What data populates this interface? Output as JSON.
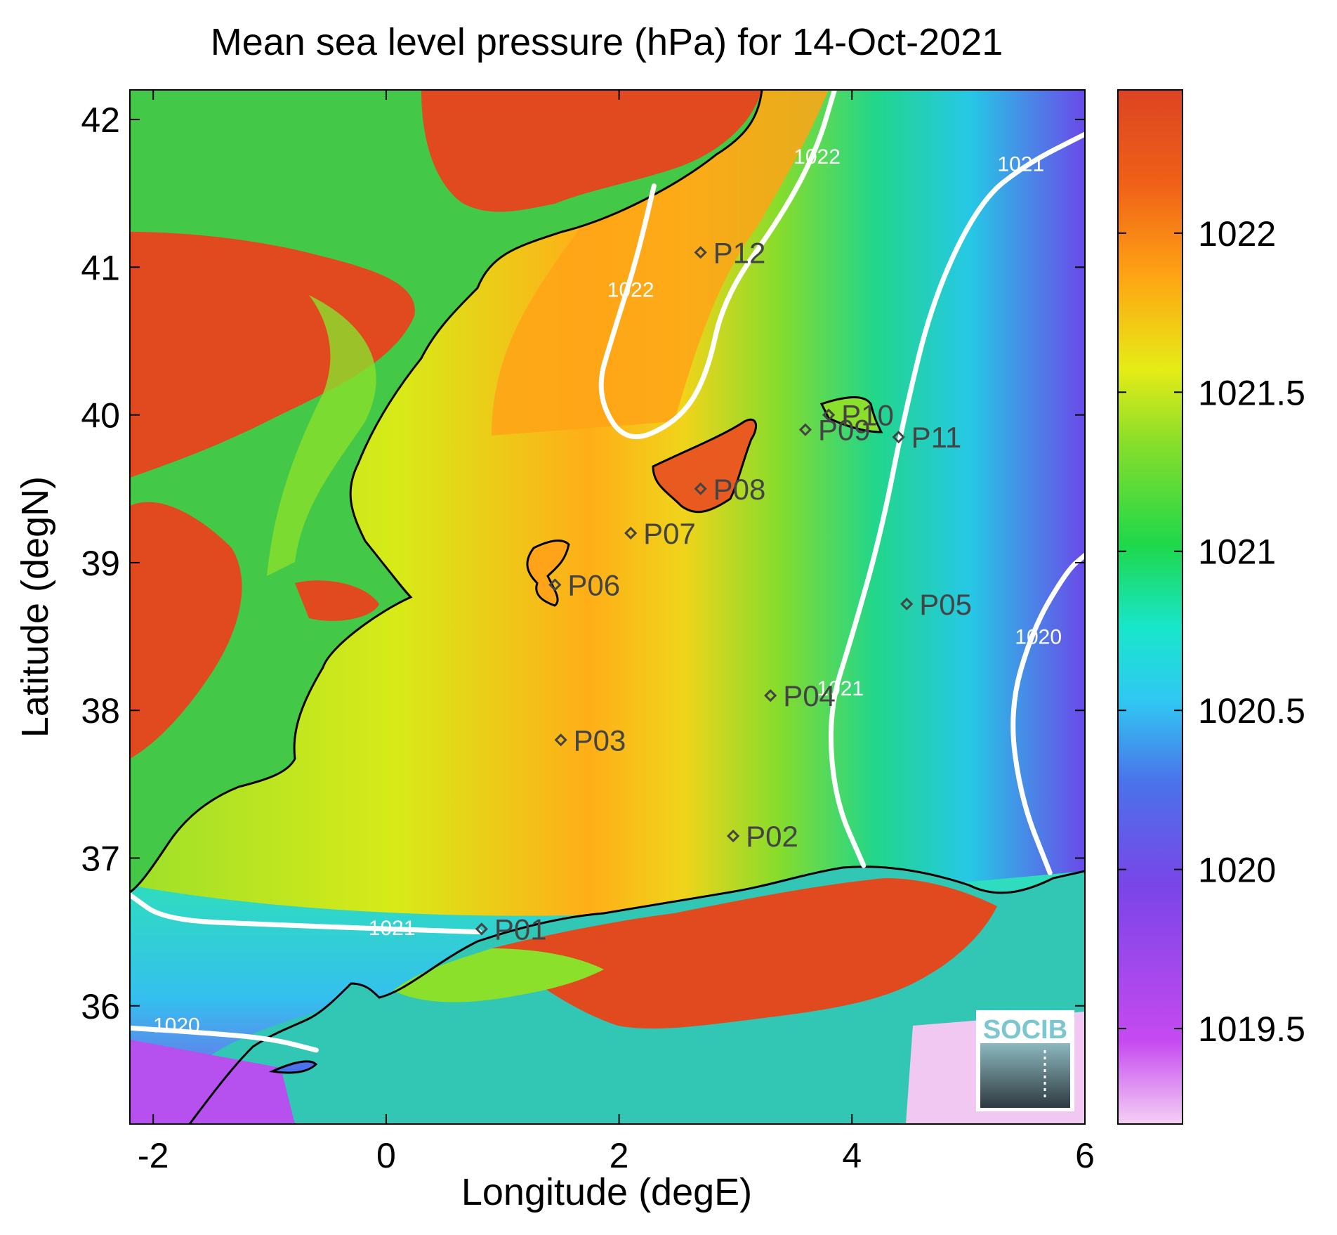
{
  "title": "Mean sea level pressure (hPa) for 14-Oct-2021",
  "chart_data": {
    "type": "heatmap",
    "title": "Mean sea level pressure (hPa) for 14-Oct-2021",
    "xlabel": "Longitude (degE)",
    "ylabel": "Latitude (degN)",
    "xlim": [
      -2.2,
      6.0
    ],
    "ylim": [
      35.2,
      42.2
    ],
    "x_ticks": [
      {
        "value": -2,
        "label": "-2"
      },
      {
        "value": 0,
        "label": "0"
      },
      {
        "value": 2,
        "label": "2"
      },
      {
        "value": 4,
        "label": "4"
      },
      {
        "value": 6,
        "label": "6"
      }
    ],
    "y_ticks": [
      {
        "value": 36,
        "label": "36"
      },
      {
        "value": 37,
        "label": "37"
      },
      {
        "value": 38,
        "label": "38"
      },
      {
        "value": 39,
        "label": "39"
      },
      {
        "value": 40,
        "label": "40"
      },
      {
        "value": 41,
        "label": "41"
      },
      {
        "value": 42,
        "label": "42"
      }
    ],
    "colorbar": {
      "range": [
        1019.2,
        1022.45
      ],
      "ticks": [
        {
          "value": 1019.5,
          "label": "1019.5"
        },
        {
          "value": 1020,
          "label": "1020"
        },
        {
          "value": 1020.5,
          "label": "1020.5"
        },
        {
          "value": 1021,
          "label": "1021"
        },
        {
          "value": 1021.5,
          "label": "1021.5"
        },
        {
          "value": 1022,
          "label": "1022"
        }
      ],
      "colors": [
        "#f3c9f3",
        "#c64af0",
        "#7a45e8",
        "#4a70e8",
        "#33c8f0",
        "#18e8c8",
        "#22d848",
        "#8ade2a",
        "#e6ec16",
        "#ffa414",
        "#f06018",
        "#dc4422"
      ]
    },
    "contours": [
      {
        "label": "1022",
        "points": [
          [
            2.3,
            41.55
          ],
          [
            2.15,
            41.05
          ],
          [
            1.95,
            40.55
          ],
          [
            1.8,
            40.15
          ],
          [
            2.05,
            39.8
          ],
          [
            2.5,
            39.95
          ],
          [
            2.75,
            40.25
          ],
          [
            2.9,
            40.8
          ],
          [
            3.4,
            41.35
          ],
          [
            3.7,
            41.8
          ],
          [
            3.85,
            42.2
          ]
        ],
        "label_positions": [
          [
            3.7,
            41.7
          ],
          [
            2.1,
            40.8
          ]
        ]
      },
      {
        "label": "1021",
        "points": [
          [
            4.1,
            36.95
          ],
          [
            3.85,
            37.4
          ],
          [
            3.8,
            38.0
          ],
          [
            4.0,
            38.5
          ],
          [
            4.25,
            39.2
          ],
          [
            4.45,
            40.0
          ],
          [
            4.7,
            40.8
          ],
          [
            5.1,
            41.45
          ],
          [
            5.5,
            41.7
          ],
          [
            6.0,
            41.9
          ]
        ],
        "label_positions": [
          [
            5.45,
            41.65
          ],
          [
            3.9,
            38.1
          ]
        ]
      },
      {
        "label": "1021",
        "points": [
          [
            -2.2,
            36.75
          ],
          [
            -1.9,
            36.58
          ],
          [
            -1.0,
            36.55
          ],
          [
            0.0,
            36.52
          ],
          [
            0.8,
            36.5
          ]
        ],
        "label_positions": [
          [
            0.05,
            36.48
          ]
        ]
      },
      {
        "label": "1020",
        "points": [
          [
            5.7,
            36.9
          ],
          [
            5.45,
            37.4
          ],
          [
            5.35,
            38.0
          ],
          [
            5.55,
            38.55
          ],
          [
            5.85,
            38.95
          ],
          [
            6.0,
            39.05
          ]
        ],
        "label_positions": [
          [
            5.6,
            38.45
          ]
        ]
      },
      {
        "label": "1020",
        "points": [
          [
            -2.2,
            35.85
          ],
          [
            -1.6,
            35.82
          ],
          [
            -1.0,
            35.78
          ],
          [
            -0.6,
            35.7
          ]
        ],
        "label_positions": [
          [
            -1.8,
            35.82
          ]
        ]
      }
    ],
    "stations": [
      {
        "name": "P01",
        "lon": 0.82,
        "lat": 36.52
      },
      {
        "name": "P02",
        "lon": 2.98,
        "lat": 37.15
      },
      {
        "name": "P03",
        "lon": 1.5,
        "lat": 37.8
      },
      {
        "name": "P04",
        "lon": 3.3,
        "lat": 38.1
      },
      {
        "name": "P05",
        "lon": 4.47,
        "lat": 38.72
      },
      {
        "name": "P06",
        "lon": 1.45,
        "lat": 38.85
      },
      {
        "name": "P07",
        "lon": 2.1,
        "lat": 39.2
      },
      {
        "name": "P08",
        "lon": 2.7,
        "lat": 39.5
      },
      {
        "name": "P09",
        "lon": 3.6,
        "lat": 39.9
      },
      {
        "name": "P10",
        "lon": 3.8,
        "lat": 40.0
      },
      {
        "name": "P11",
        "lon": 4.4,
        "lat": 39.85
      },
      {
        "name": "P12",
        "lon": 2.7,
        "lat": 41.1
      }
    ],
    "grid": false
  },
  "logo": {
    "text": "SOCIB"
  }
}
